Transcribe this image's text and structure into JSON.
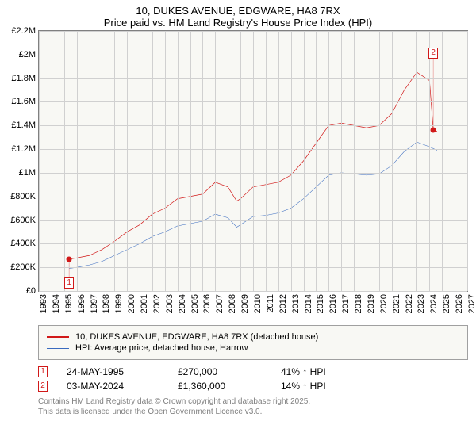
{
  "title": {
    "line1": "10, DUKES AVENUE, EDGWARE, HA8 7RX",
    "line2": "Price paid vs. HM Land Registry's House Price Index (HPI)",
    "fontsize": 13,
    "color": "#000000"
  },
  "chart": {
    "type": "line",
    "background_color": "#f8f8f4",
    "border_color": "#808080",
    "grid_color": "#d0d0d0",
    "xlim": [
      1993,
      2027
    ],
    "ylim": [
      0,
      2200000
    ],
    "ytick_step": 200000,
    "yticks": [
      {
        "v": 0,
        "label": "£0"
      },
      {
        "v": 200000,
        "label": "£200K"
      },
      {
        "v": 400000,
        "label": "£400K"
      },
      {
        "v": 600000,
        "label": "£600K"
      },
      {
        "v": 800000,
        "label": "£800K"
      },
      {
        "v": 1000000,
        "label": "£1M"
      },
      {
        "v": 1200000,
        "label": "£1.2M"
      },
      {
        "v": 1400000,
        "label": "£1.4M"
      },
      {
        "v": 1600000,
        "label": "£1.6M"
      },
      {
        "v": 1800000,
        "label": "£1.8M"
      },
      {
        "v": 2000000,
        "label": "£2M"
      },
      {
        "v": 2200000,
        "label": "£2.2M"
      }
    ],
    "xticks": [
      1993,
      1994,
      1995,
      1996,
      1997,
      1998,
      1999,
      2000,
      2001,
      2002,
      2003,
      2004,
      2005,
      2006,
      2007,
      2008,
      2009,
      2010,
      2011,
      2012,
      2013,
      2014,
      2015,
      2016,
      2017,
      2018,
      2019,
      2020,
      2021,
      2022,
      2023,
      2024,
      2025,
      2026,
      2027
    ],
    "label_fontsize": 11,
    "series": [
      {
        "id": "price_paid",
        "color": "#d11919",
        "line_width": 2,
        "x": [
          1995.4,
          1996,
          1997,
          1998,
          1999,
          2000,
          2001,
          2002,
          2003,
          2004,
          2005,
          2006,
          2007,
          2008,
          2008.7,
          2009,
          2010,
          2011,
          2012,
          2013,
          2014,
          2015,
          2016,
          2017,
          2018,
          2019,
          2020,
          2021,
          2022,
          2023,
          2024,
          2024.3,
          2024.6
        ],
        "y": [
          270000,
          280000,
          300000,
          350000,
          420000,
          500000,
          560000,
          650000,
          700000,
          780000,
          800000,
          820000,
          920000,
          880000,
          760000,
          780000,
          880000,
          900000,
          920000,
          980000,
          1100000,
          1250000,
          1400000,
          1420000,
          1400000,
          1380000,
          1400000,
          1500000,
          1700000,
          1850000,
          1780000,
          1360000,
          1350000
        ]
      },
      {
        "id": "hpi",
        "color": "#3a6bbf",
        "line_width": 1.5,
        "x": [
          1995.4,
          1996,
          1997,
          1998,
          1999,
          2000,
          2001,
          2002,
          2003,
          2004,
          2005,
          2006,
          2007,
          2008,
          2008.7,
          2009,
          2010,
          2011,
          2012,
          2013,
          2014,
          2015,
          2016,
          2017,
          2018,
          2019,
          2020,
          2021,
          2022,
          2023,
          2024,
          2024.6
        ],
        "y": [
          190000,
          200000,
          220000,
          250000,
          300000,
          350000,
          400000,
          460000,
          500000,
          550000,
          570000,
          590000,
          650000,
          620000,
          540000,
          560000,
          630000,
          640000,
          660000,
          700000,
          780000,
          880000,
          980000,
          1000000,
          990000,
          980000,
          990000,
          1060000,
          1180000,
          1260000,
          1220000,
          1190000
        ]
      }
    ],
    "markers": [
      {
        "n": "1",
        "x": 1995.4,
        "y": 270000,
        "color": "#d11919",
        "label_y_offset": -200000
      },
      {
        "n": "2",
        "x": 2024.3,
        "y": 1360000,
        "color": "#d11919",
        "label_y_offset": 650000
      }
    ]
  },
  "legend": {
    "items": [
      {
        "color": "#d11919",
        "width": 2,
        "label": "10, DUKES AVENUE, EDGWARE, HA8 7RX (detached house)"
      },
      {
        "color": "#3a6bbf",
        "width": 1.5,
        "label": "HPI: Average price, detached house, Harrow"
      }
    ]
  },
  "data_points": [
    {
      "marker": "1",
      "marker_color": "#d11919",
      "date": "24-MAY-1995",
      "price": "£270,000",
      "delta": "41% ↑ HPI"
    },
    {
      "marker": "2",
      "marker_color": "#d11919",
      "date": "03-MAY-2024",
      "price": "£1,360,000",
      "delta": "14% ↑ HPI"
    }
  ],
  "footer": {
    "line1": "Contains HM Land Registry data © Crown copyright and database right 2025.",
    "line2": "This data is licensed under the Open Government Licence v3.0.",
    "color": "#808080",
    "fontsize": 10
  }
}
